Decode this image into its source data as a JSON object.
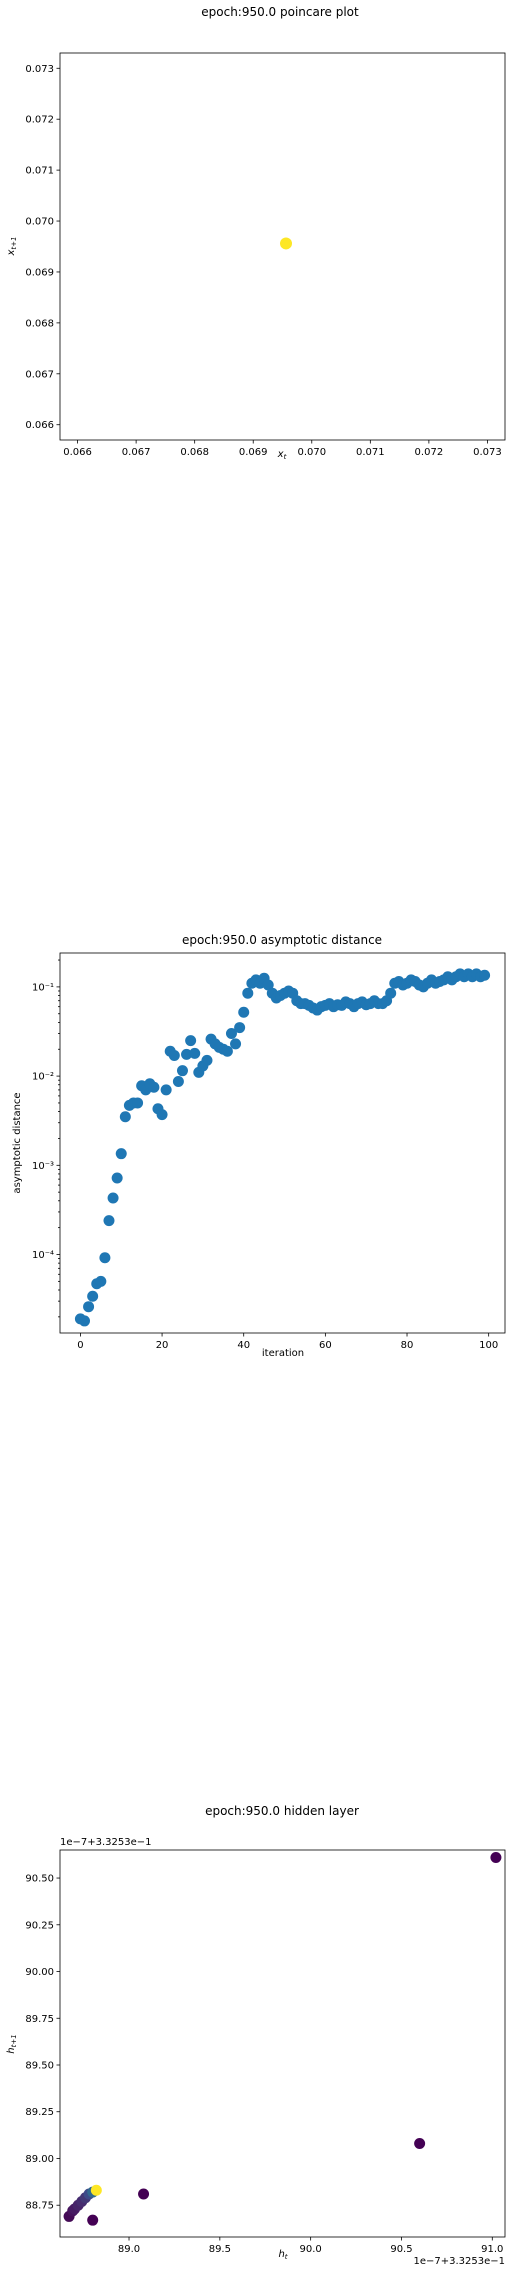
{
  "chart_data": [
    {
      "type": "scatter",
      "title": "epoch:950.0 poincare plot",
      "xlabel": "x_t",
      "ylabel": "x_{t+1}",
      "xlim": [
        0.0657,
        0.0733
      ],
      "ylim": [
        0.0657,
        0.0733
      ],
      "xticks": [
        0.066,
        0.067,
        0.068,
        0.069,
        0.07,
        0.071,
        0.072,
        0.073
      ],
      "xtick_labels": [
        "0.066",
        "0.067",
        "0.068",
        "0.069",
        "0.070",
        "0.071",
        "0.072",
        "0.073"
      ],
      "yticks": [
        0.066,
        0.067,
        0.068,
        0.069,
        0.07,
        0.071,
        0.072,
        0.073
      ],
      "ytick_labels": [
        "0.066",
        "0.067",
        "0.068",
        "0.069",
        "0.070",
        "0.071",
        "0.072",
        "0.073"
      ],
      "marker_color": "#fde725",
      "points": [
        {
          "x": 0.06956,
          "y": 0.06956
        }
      ]
    },
    {
      "type": "scatter",
      "title": "epoch:950.0 asymptotic distance",
      "xlabel": "iteration",
      "ylabel": "asymptotic distance",
      "yscale": "log",
      "xlim": [
        -5,
        104
      ],
      "ylim_log10": [
        -4.88,
        -0.62
      ],
      "xticks": [
        0,
        20,
        40,
        60,
        80,
        100
      ],
      "xtick_labels": [
        "0",
        "20",
        "40",
        "60",
        "80",
        "100"
      ],
      "yticks_log10": [
        -4,
        -3,
        -2,
        -1
      ],
      "ytick_labels": [
        "10⁻⁴",
        "10⁻³",
        "10⁻²",
        "10⁻¹"
      ],
      "marker_color": "#1f77b4",
      "x": [
        0,
        1,
        2,
        3,
        4,
        5,
        6,
        7,
        8,
        9,
        10,
        11,
        12,
        13,
        14,
        15,
        16,
        17,
        18,
        19,
        20,
        21,
        22,
        23,
        24,
        25,
        26,
        27,
        28,
        29,
        30,
        31,
        32,
        33,
        34,
        35,
        36,
        37,
        38,
        39,
        40,
        41,
        42,
        43,
        44,
        45,
        46,
        47,
        48,
        49,
        50,
        51,
        52,
        53,
        54,
        55,
        56,
        57,
        58,
        59,
        60,
        61,
        62,
        63,
        64,
        65,
        66,
        67,
        68,
        69,
        70,
        71,
        72,
        73,
        74,
        75,
        76,
        77,
        78,
        79,
        80,
        81,
        82,
        83,
        84,
        85,
        86,
        87,
        88,
        89,
        90,
        91,
        92,
        93,
        94,
        95,
        96,
        97,
        98,
        99
      ],
      "y": [
        1.9e-05,
        1.8e-05,
        2.6e-05,
        3.4e-05,
        4.7e-05,
        5e-05,
        9.2e-05,
        0.00024,
        0.00043,
        0.00072,
        0.00135,
        0.0035,
        0.0047,
        0.005,
        0.005,
        0.0078,
        0.007,
        0.0082,
        0.0075,
        0.0043,
        0.0037,
        0.007,
        0.019,
        0.017,
        0.0087,
        0.0115,
        0.0175,
        0.025,
        0.018,
        0.011,
        0.013,
        0.015,
        0.026,
        0.023,
        0.021,
        0.02,
        0.019,
        0.03,
        0.023,
        0.035,
        0.052,
        0.085,
        0.11,
        0.12,
        0.11,
        0.125,
        0.105,
        0.085,
        0.075,
        0.08,
        0.085,
        0.09,
        0.085,
        0.07,
        0.065,
        0.065,
        0.062,
        0.058,
        0.055,
        0.06,
        0.062,
        0.065,
        0.06,
        0.063,
        0.062,
        0.068,
        0.065,
        0.06,
        0.065,
        0.068,
        0.063,
        0.065,
        0.07,
        0.065,
        0.065,
        0.07,
        0.085,
        0.11,
        0.115,
        0.105,
        0.11,
        0.12,
        0.115,
        0.105,
        0.1,
        0.11,
        0.12,
        0.11,
        0.115,
        0.12,
        0.13,
        0.12,
        0.13,
        0.14,
        0.13,
        0.14,
        0.13,
        0.14,
        0.13,
        0.135
      ]
    },
    {
      "type": "scatter",
      "title": "epoch:950.0 hidden layer",
      "xlabel": "h_t",
      "ylabel": "h_{t+1}",
      "x_offset_text": "1e−7+3.3253e−1",
      "y_offset_text": "1e−7+3.3253e−1",
      "xlim": [
        88.62,
        91.07
      ],
      "ylim": [
        88.58,
        90.65
      ],
      "xticks": [
        89.0,
        89.5,
        90.0,
        90.5,
        91.0
      ],
      "xtick_labels": [
        "89.0",
        "89.5",
        "90.0",
        "90.5",
        "91.0"
      ],
      "yticks": [
        88.75,
        89.0,
        89.25,
        89.5,
        89.75,
        90.0,
        90.25,
        90.5
      ],
      "ytick_labels": [
        "88.75",
        "89.00",
        "89.25",
        "89.50",
        "89.75",
        "90.00",
        "90.25",
        "90.50"
      ],
      "points": [
        {
          "x": 91.02,
          "y": 90.61,
          "color": "#440154"
        },
        {
          "x": 90.6,
          "y": 89.08,
          "color": "#440154"
        },
        {
          "x": 89.08,
          "y": 88.81,
          "color": "#440154"
        },
        {
          "x": 88.8,
          "y": 88.67,
          "color": "#440154"
        },
        {
          "x": 88.67,
          "y": 88.69,
          "color": "#440b56"
        },
        {
          "x": 88.69,
          "y": 88.72,
          "color": "#46135d"
        },
        {
          "x": 88.7,
          "y": 88.73,
          "color": "#471b63"
        },
        {
          "x": 88.72,
          "y": 88.75,
          "color": "#472469"
        },
        {
          "x": 88.74,
          "y": 88.77,
          "color": "#462c6f"
        },
        {
          "x": 88.76,
          "y": 88.79,
          "color": "#433776"
        },
        {
          "x": 88.78,
          "y": 88.81,
          "color": "#3e4a89"
        },
        {
          "x": 88.8,
          "y": 88.82,
          "color": "#31688e"
        },
        {
          "x": 88.82,
          "y": 88.83,
          "color": "#fde725"
        }
      ]
    }
  ]
}
